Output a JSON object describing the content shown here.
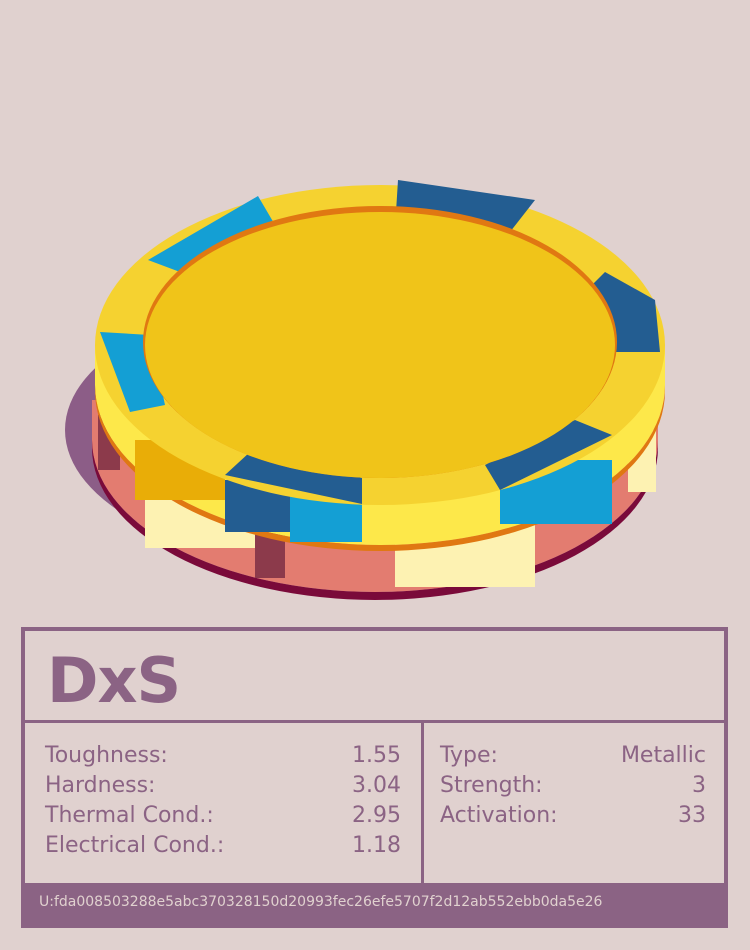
{
  "token": {
    "name": "DxS",
    "uid": "U:fda008503288e5abc370328150d20993fec26efe5707f2d12ab552ebb0da5e26",
    "colors": {
      "background": "#e0d1cf",
      "frame": "#8b6384",
      "gold": "#f0c419",
      "gold_light": "#fde84a",
      "gold_rim": "#f5d230",
      "gold_dark": "#e9ad07",
      "orange_edge": "#e07812",
      "blue": "#149fd4",
      "blue_dark": "#235d91",
      "salmon": "#e37c70",
      "cream": "#fdf2b2",
      "maroon": "#8c3a4b",
      "wine": "#7a0a3a",
      "shadow": "#8c5d87"
    },
    "icon": "poker-chip-icon"
  },
  "stats": {
    "left": [
      {
        "label": "Toughness:",
        "value": "1.55"
      },
      {
        "label": "Hardness:",
        "value": "3.04"
      },
      {
        "label": "Thermal Cond.:",
        "value": "2.95"
      },
      {
        "label": "Electrical Cond.:",
        "value": "1.18"
      }
    ],
    "right": [
      {
        "label": "Type:",
        "value": "Metallic"
      },
      {
        "label": "Strength:",
        "value": "3"
      },
      {
        "label": "Activation:",
        "value": "33"
      }
    ]
  }
}
